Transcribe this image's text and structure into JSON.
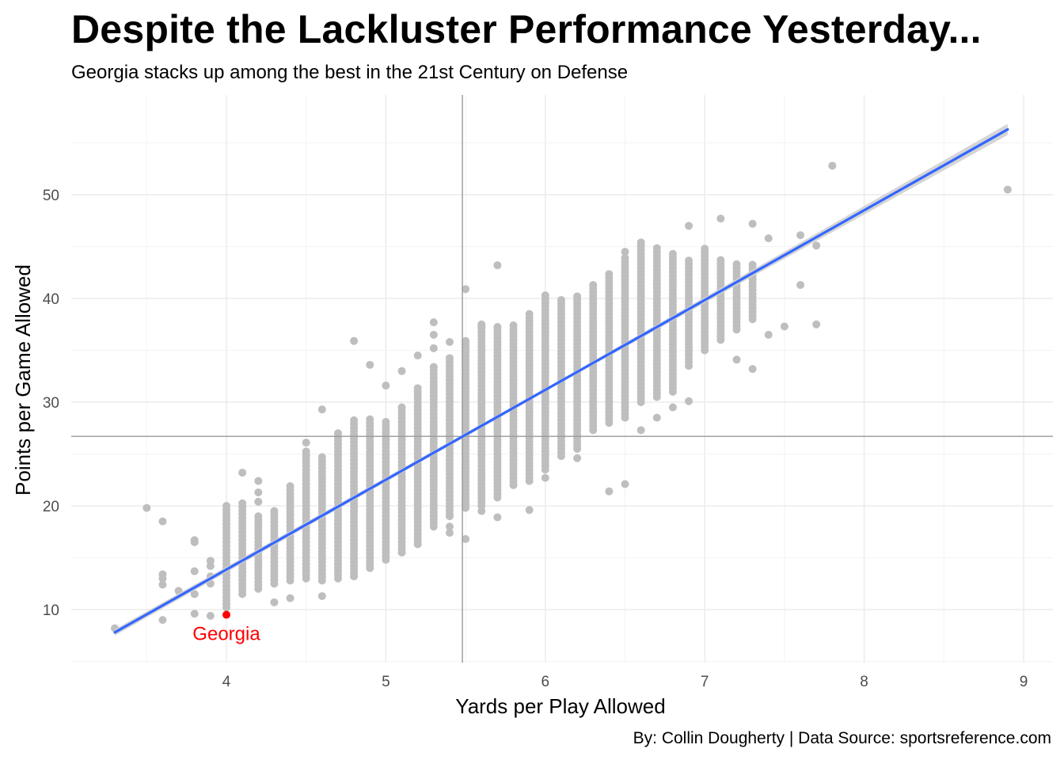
{
  "title": "Despite the Lackluster Performance Yesterday...",
  "subtitle": "Georgia stacks up among the best in the 21st Century on Defense",
  "caption": "By: Collin Dougherty | Data Source: sportsreference.com",
  "chart_data": {
    "type": "scatter",
    "xlabel": "Yards per Play Allowed",
    "ylabel": "Points per Game Allowed",
    "xlim": [
      3.3,
      9.0
    ],
    "ylim": [
      5,
      60
    ],
    "xticks": [
      "4",
      "5",
      "6",
      "7",
      "8",
      "9"
    ],
    "yticks": [
      "10",
      "20",
      "30",
      "40",
      "50"
    ],
    "grid": true,
    "point_color": "#bebebe",
    "trend_color": "#3366ff",
    "band_color": "#d0d0d0",
    "reference_color": "#999999",
    "highlight_color": "#ff0000",
    "reference_lines": {
      "x": 5.48,
      "y": 26.7
    },
    "trend_line": {
      "x": [
        3.3,
        8.9
      ],
      "y": [
        7.8,
        56.3
      ]
    },
    "highlight": {
      "label": "Georgia",
      "x": 4.0,
      "y": 9.5
    },
    "outliers": [
      [
        3.3,
        8.2
      ],
      [
        3.5,
        19.8
      ],
      [
        3.6,
        18.5
      ],
      [
        3.6,
        13.4
      ],
      [
        3.6,
        13.0
      ],
      [
        3.6,
        12.4
      ],
      [
        3.6,
        9.0
      ],
      [
        3.7,
        11.8
      ],
      [
        3.8,
        16.7
      ],
      [
        3.8,
        16.5
      ],
      [
        3.8,
        13.7
      ],
      [
        3.8,
        11.5
      ],
      [
        3.8,
        9.6
      ],
      [
        3.9,
        14.7
      ],
      [
        3.9,
        14.2
      ],
      [
        3.9,
        13.2
      ],
      [
        3.9,
        12.5
      ],
      [
        3.9,
        9.4
      ],
      [
        4.1,
        23.2
      ],
      [
        4.2,
        22.4
      ],
      [
        4.2,
        21.3
      ],
      [
        4.2,
        20.4
      ],
      [
        4.3,
        10.7
      ],
      [
        4.4,
        11.1
      ],
      [
        4.5,
        26.1
      ],
      [
        4.6,
        29.3
      ],
      [
        4.6,
        11.3
      ],
      [
        4.8,
        35.9
      ],
      [
        4.9,
        33.6
      ],
      [
        5.0,
        31.6
      ],
      [
        5.1,
        33.0
      ],
      [
        5.2,
        34.5
      ],
      [
        5.3,
        37.7
      ],
      [
        5.3,
        36.5
      ],
      [
        5.3,
        35.2
      ],
      [
        5.4,
        35.8
      ],
      [
        5.4,
        18.0
      ],
      [
        5.4,
        17.4
      ],
      [
        5.4,
        19.0
      ],
      [
        5.5,
        40.9
      ],
      [
        5.5,
        16.8
      ],
      [
        5.6,
        37.3
      ],
      [
        5.6,
        19.5
      ],
      [
        5.7,
        43.2
      ],
      [
        5.7,
        18.9
      ],
      [
        5.9,
        19.6
      ],
      [
        6.0,
        22.7
      ],
      [
        6.2,
        24.6
      ],
      [
        6.4,
        21.4
      ],
      [
        6.5,
        22.1
      ],
      [
        6.5,
        44.5
      ],
      [
        6.6,
        27.3
      ],
      [
        6.7,
        28.5
      ],
      [
        6.8,
        29.5
      ],
      [
        6.9,
        30.1
      ],
      [
        6.9,
        47.0
      ],
      [
        7.1,
        47.7
      ],
      [
        7.2,
        34.1
      ],
      [
        7.3,
        33.2
      ],
      [
        7.3,
        47.2
      ],
      [
        7.4,
        45.8
      ],
      [
        7.4,
        36.5
      ],
      [
        7.5,
        37.3
      ],
      [
        7.6,
        46.1
      ],
      [
        7.6,
        41.3
      ],
      [
        7.7,
        45.1
      ],
      [
        7.7,
        37.5
      ],
      [
        7.8,
        52.8
      ],
      [
        8.9,
        50.5
      ]
    ],
    "columns": [
      {
        "x": 4.0,
        "lo": 10.2,
        "hi": 20.0
      },
      {
        "x": 4.1,
        "lo": 11.5,
        "hi": 20.4
      },
      {
        "x": 4.2,
        "lo": 12.0,
        "hi": 19.2
      },
      {
        "x": 4.3,
        "lo": 12.5,
        "hi": 19.5
      },
      {
        "x": 4.4,
        "lo": 12.8,
        "hi": 22.0
      },
      {
        "x": 4.5,
        "lo": 13.0,
        "hi": 25.5
      },
      {
        "x": 4.6,
        "lo": 12.8,
        "hi": 25.0
      },
      {
        "x": 4.7,
        "lo": 13.0,
        "hi": 27.2
      },
      {
        "x": 4.8,
        "lo": 13.2,
        "hi": 28.5
      },
      {
        "x": 4.9,
        "lo": 14.0,
        "hi": 28.4
      },
      {
        "x": 5.0,
        "lo": 14.8,
        "hi": 28.4
      },
      {
        "x": 5.1,
        "lo": 15.5,
        "hi": 29.6
      },
      {
        "x": 5.2,
        "lo": 16.3,
        "hi": 31.5
      },
      {
        "x": 5.3,
        "lo": 18.0,
        "hi": 33.5
      },
      {
        "x": 5.4,
        "lo": 19.2,
        "hi": 34.5
      },
      {
        "x": 5.5,
        "lo": 19.8,
        "hi": 36.0
      },
      {
        "x": 5.6,
        "lo": 20.0,
        "hi": 37.5
      },
      {
        "x": 5.7,
        "lo": 20.8,
        "hi": 37.5
      },
      {
        "x": 5.8,
        "lo": 22.0,
        "hi": 37.5
      },
      {
        "x": 5.9,
        "lo": 22.4,
        "hi": 38.5
      },
      {
        "x": 6.0,
        "lo": 23.5,
        "hi": 40.5
      },
      {
        "x": 6.1,
        "lo": 24.8,
        "hi": 40.0
      },
      {
        "x": 6.2,
        "lo": 25.5,
        "hi": 40.5
      },
      {
        "x": 6.3,
        "lo": 27.3,
        "hi": 41.5
      },
      {
        "x": 6.4,
        "lo": 28.0,
        "hi": 42.5
      },
      {
        "x": 6.5,
        "lo": 28.5,
        "hi": 44.0
      },
      {
        "x": 6.6,
        "lo": 30.0,
        "hi": 45.5
      },
      {
        "x": 6.7,
        "lo": 30.5,
        "hi": 45.0
      },
      {
        "x": 6.8,
        "lo": 31.0,
        "hi": 44.5
      },
      {
        "x": 6.9,
        "lo": 33.5,
        "hi": 43.8
      },
      {
        "x": 7.0,
        "lo": 35.0,
        "hi": 44.8
      },
      {
        "x": 7.1,
        "lo": 36.0,
        "hi": 44.0
      },
      {
        "x": 7.2,
        "lo": 37.0,
        "hi": 43.5
      },
      {
        "x": 7.3,
        "lo": 38.0,
        "hi": 43.5
      }
    ]
  }
}
